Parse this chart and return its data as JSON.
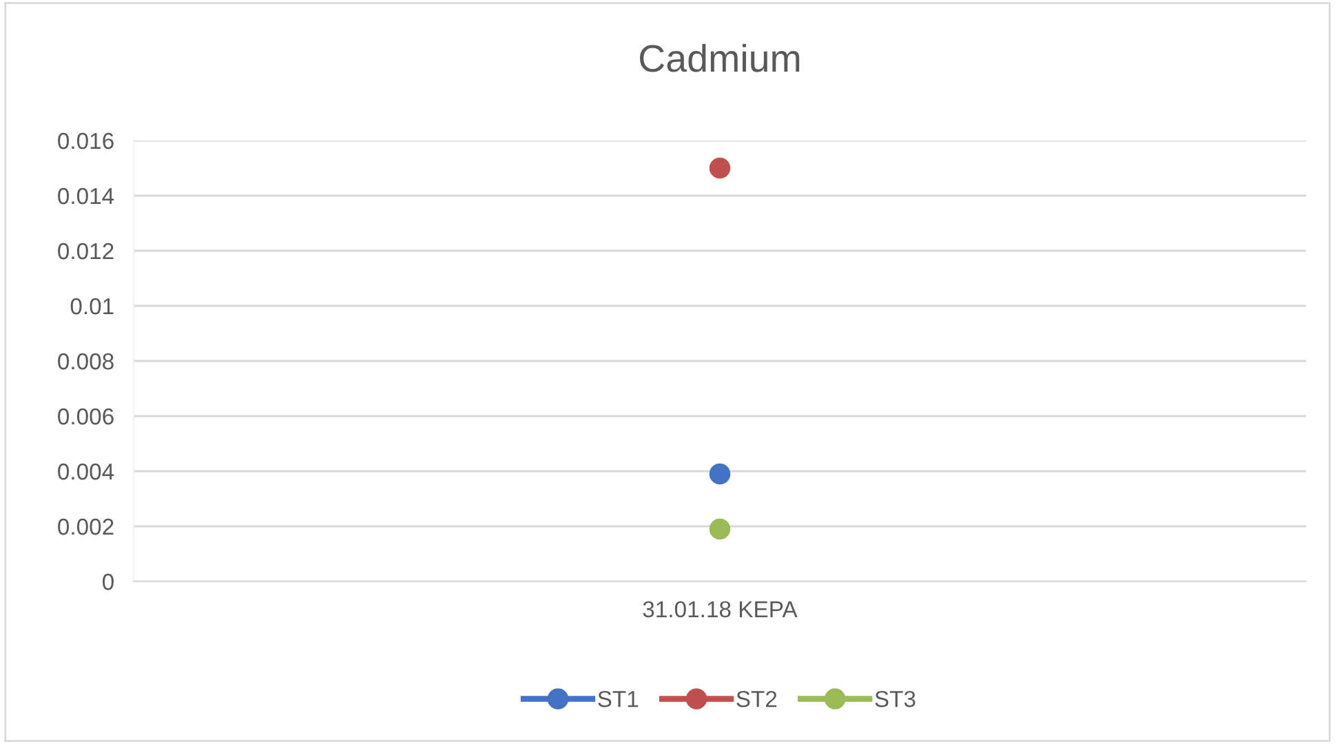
{
  "chart_data": {
    "type": "line",
    "title": "Cadmium",
    "categories": [
      "31.01.18 KEPA"
    ],
    "series": [
      {
        "name": "ST1",
        "color": "#4472c4",
        "values": [
          0.0039
        ]
      },
      {
        "name": "ST2",
        "color": "#c0504d",
        "values": [
          0.015
        ]
      },
      {
        "name": "ST3",
        "color": "#9bbb59",
        "values": [
          0.0019
        ]
      }
    ],
    "ylim": [
      0,
      0.016
    ],
    "yticks": [
      {
        "value": 0,
        "label": "0"
      },
      0.002,
      0.004,
      0.006,
      0.008,
      {
        "value": 0.01,
        "label": "0.01"
      },
      0.012,
      0.014,
      0.016
    ],
    "grid": "y",
    "legend": "bottom",
    "marker": "circle",
    "line_style": "solid"
  }
}
